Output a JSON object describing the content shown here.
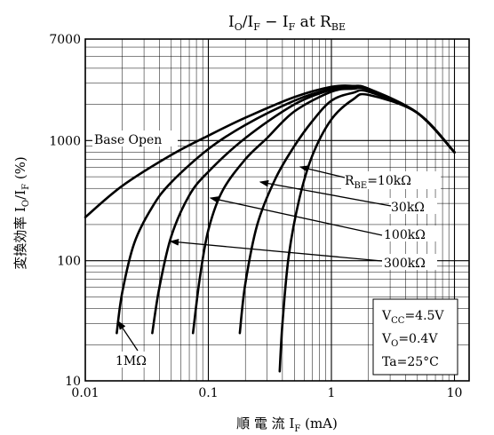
{
  "chart_data": {
    "type": "line",
    "title": "IO/IF − IF at RBE",
    "xlabel": "順 電 流 IF (mA)",
    "ylabel": "変換効率 IO/IF (%)",
    "x_scale": "log",
    "y_scale": "log",
    "xlim": [
      0.01,
      15
    ],
    "ylim": [
      10,
      7000
    ],
    "x_ticks": [
      {
        "value": 0.01,
        "label": "0.01"
      },
      {
        "value": 0.1,
        "label": "0.1"
      },
      {
        "value": 1,
        "label": "1"
      },
      {
        "value": 10,
        "label": "10"
      }
    ],
    "y_ticks": [
      {
        "value": 10,
        "label": "10"
      },
      {
        "value": 100,
        "label": "100"
      },
      {
        "value": 1000,
        "label": "1000"
      },
      {
        "value": 7000,
        "label": "7000"
      }
    ],
    "grid": true,
    "conditions": [
      "VCC = 4.5V",
      "VO = 0.4V",
      "Ta = 25°C"
    ],
    "series": [
      {
        "name": "Base Open",
        "x": [
          0.01,
          0.02,
          0.05,
          0.1,
          0.2,
          0.5,
          1,
          1.5,
          2,
          5,
          10
        ],
        "y": [
          230,
          420,
          760,
          1100,
          1550,
          2300,
          2800,
          2850,
          2700,
          1700,
          800
        ]
      },
      {
        "name": "1MΩ",
        "x": [
          0.018,
          0.02,
          0.025,
          0.035,
          0.05,
          0.1,
          0.2,
          0.5,
          1,
          1.5,
          2,
          5,
          10
        ],
        "y": [
          25,
          55,
          140,
          280,
          450,
          850,
          1350,
          2150,
          2700,
          2800,
          2700,
          1700,
          800
        ]
      },
      {
        "name": "300kΩ",
        "x": [
          0.035,
          0.04,
          0.05,
          0.07,
          0.1,
          0.2,
          0.5,
          1,
          1.5,
          2,
          5,
          10
        ],
        "y": [
          25,
          60,
          160,
          350,
          550,
          1050,
          2000,
          2650,
          2750,
          2650,
          1700,
          800
        ]
      },
      {
        "name": "100kΩ",
        "x": [
          0.075,
          0.085,
          0.1,
          0.13,
          0.2,
          0.3,
          0.5,
          1,
          1.5,
          2,
          5,
          10
        ],
        "y": [
          25,
          70,
          180,
          380,
          700,
          1050,
          1750,
          2550,
          2700,
          2650,
          1700,
          800
        ]
      },
      {
        "name": "30kΩ",
        "x": [
          0.18,
          0.2,
          0.25,
          0.35,
          0.5,
          0.7,
          1,
          1.5,
          2,
          5,
          10
        ],
        "y": [
          25,
          65,
          200,
          480,
          900,
          1450,
          2150,
          2500,
          2550,
          1700,
          800
        ]
      },
      {
        "name": "10kΩ",
        "x": [
          0.38,
          0.4,
          0.45,
          0.55,
          0.7,
          1,
          1.5,
          2,
          5,
          10
        ],
        "y": [
          12,
          30,
          110,
          330,
          750,
          1500,
          2200,
          2400,
          1700,
          800
        ]
      }
    ],
    "annotations": [
      {
        "text": "Base Open",
        "series": "Base Open"
      },
      {
        "text": "RBE=10kΩ",
        "series": "10kΩ"
      },
      {
        "text": "30kΩ",
        "series": "30kΩ"
      },
      {
        "text": "100kΩ",
        "series": "100kΩ"
      },
      {
        "text": "300kΩ",
        "series": "300kΩ"
      },
      {
        "text": "1MΩ",
        "series": "1MΩ"
      }
    ]
  }
}
